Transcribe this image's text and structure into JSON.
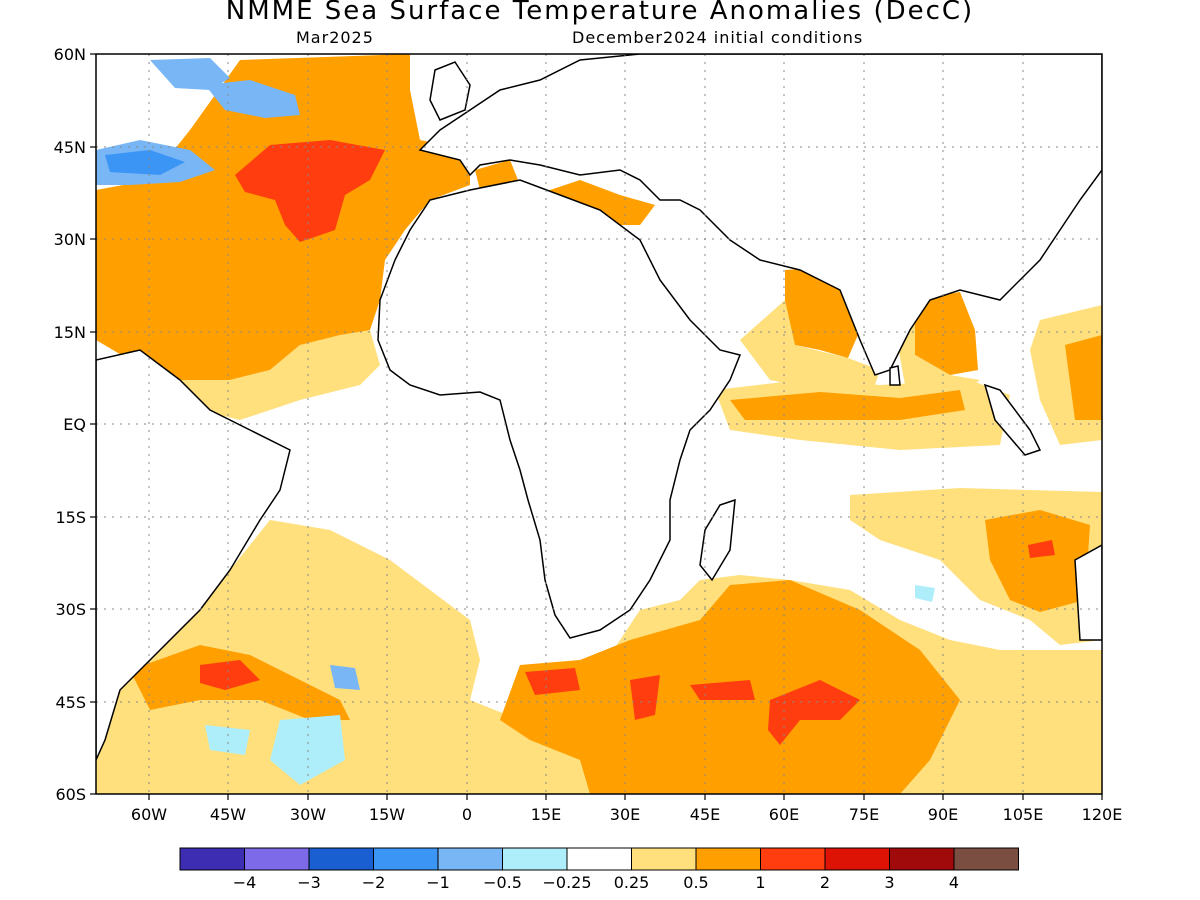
{
  "header": {
    "title": "NMME Sea Surface Temperature Anomalies (DecC)",
    "target_month": "Mar2025",
    "init_conditions": "December2024 initial conditions"
  },
  "map": {
    "lon_range": [
      -70,
      120
    ],
    "lat_range": [
      -60,
      60
    ],
    "grid": true,
    "lat_labels": [
      "60N",
      "45N",
      "30N",
      "15N",
      "EQ",
      "15S",
      "30S",
      "45S",
      "60S"
    ],
    "lon_labels": [
      "60W",
      "45W",
      "30W",
      "15W",
      "0",
      "15E",
      "30E",
      "45E",
      "60E",
      "75E",
      "90E",
      "105E",
      "120E"
    ]
  },
  "colorbar": {
    "colors": [
      "#3d2db3",
      "#7d6ae8",
      "#1a5fd1",
      "#3b95f5",
      "#78b6f5",
      "#aeeefa",
      "#ffffff",
      "#ffe07d",
      "#ff9f00",
      "#ff3d0f",
      "#dd1405",
      "#a00a0a",
      "#7a4e40"
    ],
    "labels": [
      "−4",
      "−3",
      "−2",
      "−1",
      "−0.5",
      "−0.25",
      "0.25",
      "0.5",
      "1",
      "2",
      "3",
      "4"
    ]
  }
}
